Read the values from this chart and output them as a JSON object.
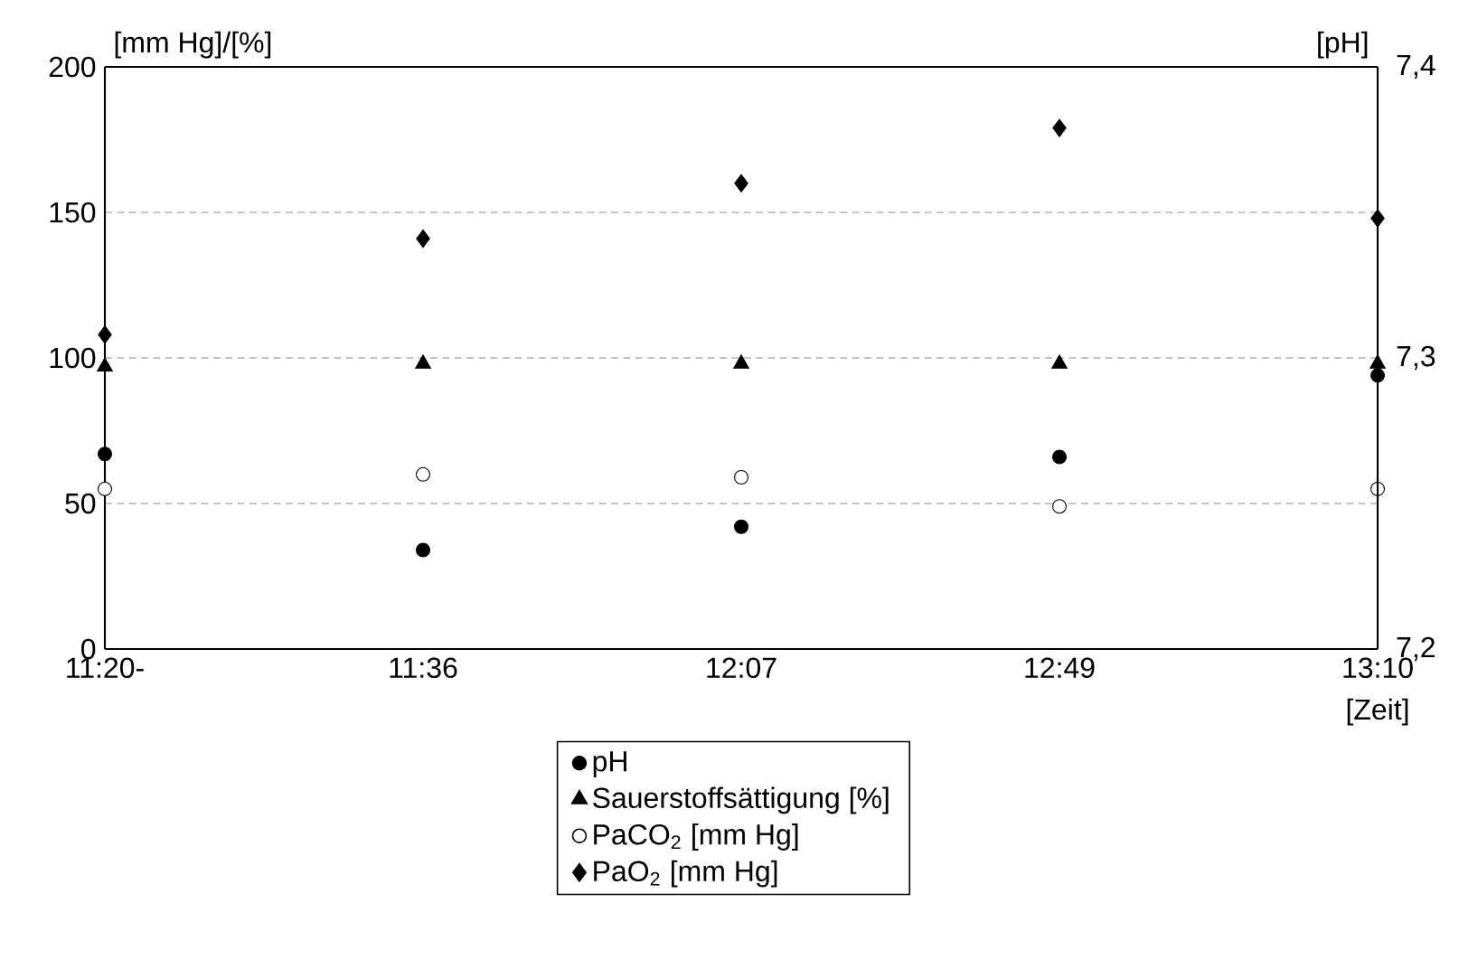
{
  "chart_data": {
    "type": "scatter",
    "ylabel": "[mm Hg]/[%]",
    "y2label": "[pH]",
    "xlabel": "[Zeit]",
    "categories": [
      "11:20-",
      "11:36",
      "12:07",
      "12:49",
      "13:10"
    ],
    "ylim": [
      0,
      200
    ],
    "yticks": [
      0,
      50,
      100,
      150,
      200
    ],
    "y2lim": [
      7.2,
      7.4
    ],
    "y2ticks": [
      {
        "value": 7.2,
        "label": "7,2"
      },
      {
        "value": 7.3,
        "label": "7,3"
      },
      {
        "value": 7.4,
        "label": "7,4"
      }
    ],
    "grid": "y",
    "legend": "bottom",
    "series": [
      {
        "name": "pH",
        "color": "#000000",
        "marker": "circle",
        "axis": "y2",
        "values": [
          7.267,
          7.234,
          7.242,
          7.266,
          7.294
        ]
      },
      {
        "name": "Sauerstoffsättigung [%]",
        "color": "#000000",
        "marker": "triangle",
        "values": [
          97,
          98,
          98,
          98,
          98
        ]
      },
      {
        "name": "PaCO$_{2}$ [mm Hg]",
        "color": "#ffffff",
        "marker": "circle",
        "values": [
          55,
          60,
          59,
          49,
          55
        ]
      },
      {
        "name": "PaO$_{2}$ [mm Hg]",
        "color": "#000000",
        "marker": "diamond",
        "values": [
          108,
          141,
          160,
          179,
          148
        ]
      }
    ]
  }
}
